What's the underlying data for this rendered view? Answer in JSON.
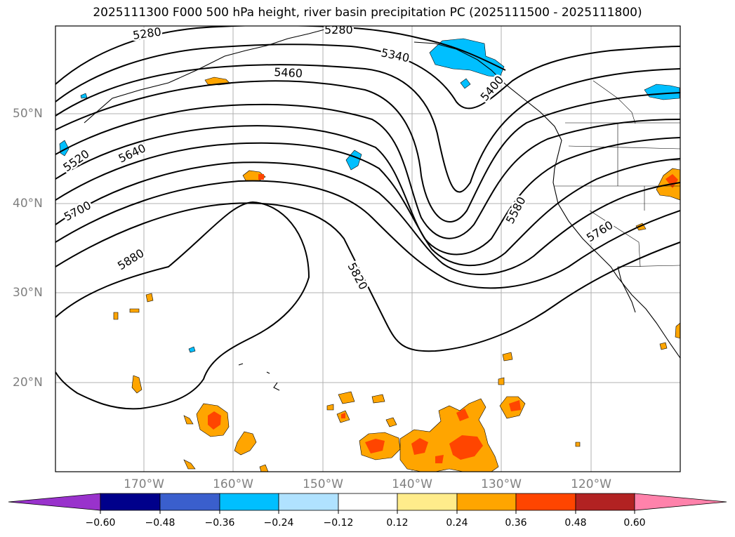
{
  "title": "2025111300 F000 500 hPa height, river basin precipitation PC (2025111500 - 2025111800)",
  "map": {
    "lat_labels": [
      "50°N",
      "40°N",
      "30°N",
      "20°N"
    ],
    "lon_labels": [
      "170°W",
      "160°W",
      "150°W",
      "140°W",
      "130°W",
      "120°W"
    ]
  },
  "contour_labels": [
    "5280",
    "5280",
    "5340",
    "5400",
    "5460",
    "5520",
    "5580",
    "5640",
    "5700",
    "5760",
    "5820",
    "5880"
  ],
  "colorbar": {
    "ticks": [
      "−0.60",
      "−0.48",
      "−0.36",
      "−0.24",
      "−0.12",
      "0.12",
      "0.24",
      "0.36",
      "0.48",
      "0.60"
    ],
    "colors": [
      "#9932cc",
      "#00008b",
      "#3a5fcd",
      "#00bfff",
      "#b0e2ff",
      "#ffffff",
      "#ffec8b",
      "#ffa500",
      "#ff4500",
      "#b22222",
      "#ff82ab"
    ]
  },
  "colors": {
    "negative_precip": "#00bfff",
    "positive_low": "#ffa500",
    "positive_high": "#ff4500",
    "grid": "#b0b0b0",
    "contour": "#000000"
  }
}
